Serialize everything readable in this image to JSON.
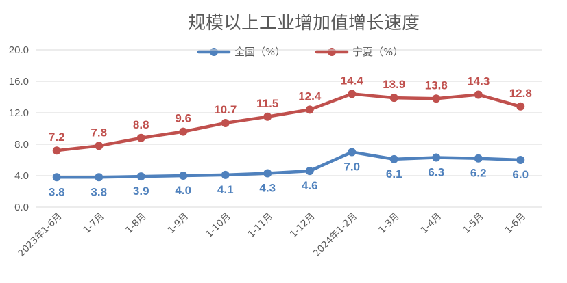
{
  "chart_data": {
    "type": "line",
    "title": "规模以上工业增加值增长速度",
    "xlabel": "",
    "ylabel": "",
    "categories": [
      "2023年1-6月",
      "1-7月",
      "1-8月",
      "1-9月",
      "1-10月",
      "1-11月",
      "1-12月",
      "2024年1-2月",
      "1-3月",
      "1-4月",
      "1-5月",
      "1-6月"
    ],
    "ylim": [
      0,
      20
    ],
    "yticks": [
      "0.0",
      "4.0",
      "8.0",
      "12.0",
      "16.0",
      "20.0"
    ],
    "grid": true,
    "legend_position": "top",
    "series": [
      {
        "name": "全国（%）",
        "color": "#4f81bd",
        "values": [
          3.8,
          3.8,
          3.9,
          4.0,
          4.1,
          4.3,
          4.6,
          7.0,
          6.1,
          6.3,
          6.2,
          6.0
        ],
        "labels": [
          "3.8",
          "3.8",
          "3.9",
          "4.0",
          "4.1",
          "4.3",
          "4.6",
          "7.0",
          "6.1",
          "6.3",
          "6.2",
          "6.0"
        ],
        "label_position": "below"
      },
      {
        "name": "宁夏（%）",
        "color": "#c0504d",
        "values": [
          7.2,
          7.8,
          8.8,
          9.6,
          10.7,
          11.5,
          12.4,
          14.4,
          13.9,
          13.8,
          14.3,
          12.8
        ],
        "labels": [
          "7.2",
          "7.8",
          "8.8",
          "9.6",
          "10.7",
          "11.5",
          "12.4",
          "14.4",
          "13.9",
          "13.8",
          "14.3",
          "12.8"
        ],
        "label_position": "above"
      }
    ]
  }
}
